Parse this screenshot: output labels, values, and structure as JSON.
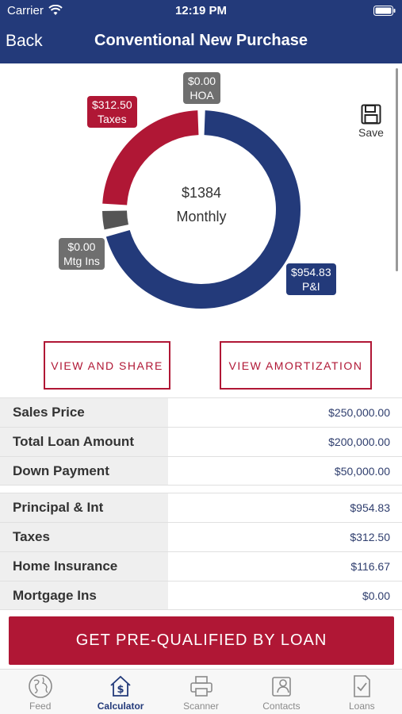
{
  "status_bar": {
    "carrier": "Carrier",
    "time": "12:19 PM"
  },
  "nav": {
    "back_label": "Back",
    "title": "Conventional New Purchase"
  },
  "donut": {
    "total": "$1384",
    "period": "Monthly",
    "segments": [
      {
        "name": "P&I",
        "value": 954.83,
        "color": "#233a7a"
      },
      {
        "name": "Mtg Ins",
        "value": 0.0,
        "color": "#555555"
      },
      {
        "name": "Taxes",
        "value": 312.5,
        "color": "#b01735"
      },
      {
        "name": "HOA",
        "value": 0.0,
        "color": "#6f6f6f"
      }
    ]
  },
  "callouts": {
    "hoa": {
      "amount": "$0.00",
      "label": "HOA"
    },
    "taxes": {
      "amount": "$312.50",
      "label": "Taxes"
    },
    "mtg_ins": {
      "amount": "$0.00",
      "label": "Mtg Ins"
    },
    "pi": {
      "amount": "$954.83",
      "label": "P&I"
    }
  },
  "save_label": "Save",
  "buttons": {
    "view_share": "VIEW AND SHARE",
    "view_amortization": "VIEW AMORTIZATION"
  },
  "loan_table": [
    {
      "label": "Sales Price",
      "value": "$250,000.00"
    },
    {
      "label": "Total Loan Amount",
      "value": "$200,000.00"
    },
    {
      "label": "Down Payment",
      "value": "$50,000.00"
    }
  ],
  "payment_table": [
    {
      "label": "Principal & Int",
      "value": "$954.83"
    },
    {
      "label": "Taxes",
      "value": "$312.50"
    },
    {
      "label": "Home Insurance",
      "value": "$116.67"
    },
    {
      "label": "Mortgage Ins",
      "value": "$0.00"
    }
  ],
  "cta_label": "GET PRE-QUALIFIED BY LOAN",
  "tabs": [
    {
      "label": "Feed",
      "icon": "globe-icon"
    },
    {
      "label": "Calculator",
      "icon": "calculator-house-icon",
      "active": true
    },
    {
      "label": "Scanner",
      "icon": "printer-icon"
    },
    {
      "label": "Contacts",
      "icon": "contacts-icon"
    },
    {
      "label": "Loans",
      "icon": "document-check-icon"
    }
  ]
}
